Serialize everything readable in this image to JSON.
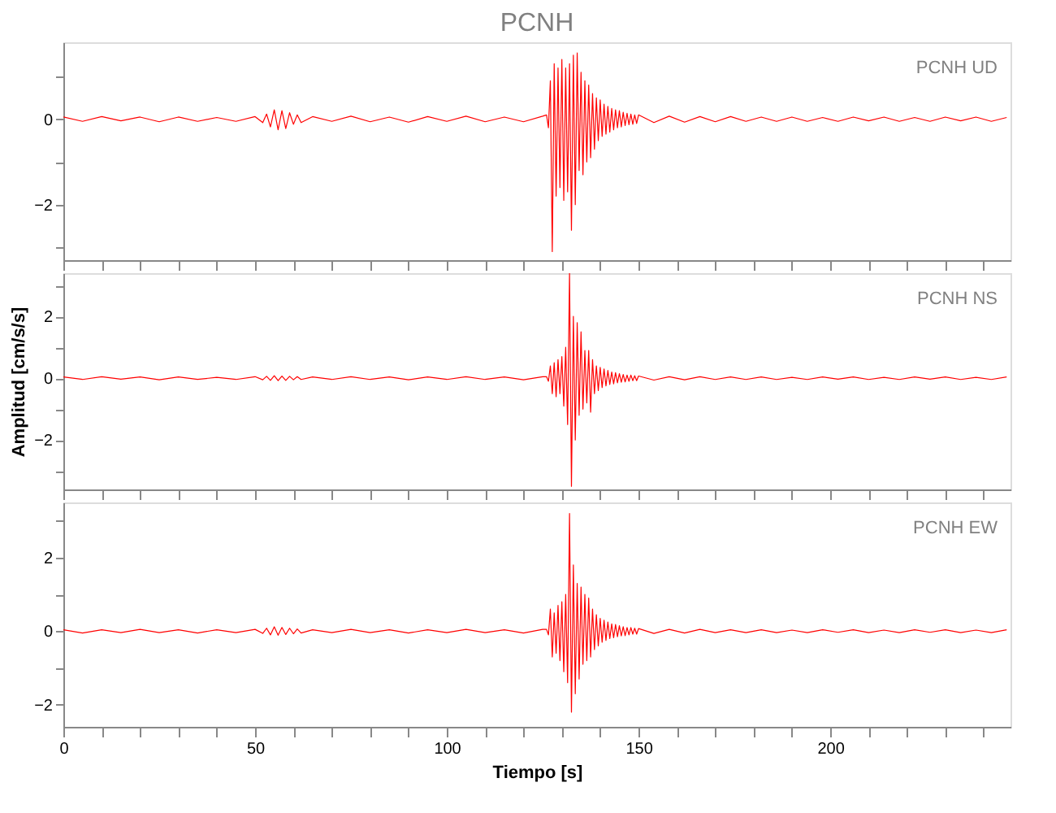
{
  "chart_data": [
    {
      "type": "line",
      "title": "PCNH",
      "annotations": [
        "PCNH  UD"
      ],
      "tick_labels": "y",
      "x": [
        0,
        5,
        10,
        15,
        20,
        25,
        30,
        35,
        40,
        45,
        50,
        52,
        53,
        54,
        55,
        56,
        57,
        58,
        59,
        60,
        61,
        62,
        65,
        70,
        75,
        80,
        85,
        90,
        95,
        100,
        105,
        110,
        115,
        120,
        125,
        126,
        126.5,
        127,
        127.5,
        128,
        128.5,
        129,
        129.5,
        130,
        130.5,
        131,
        131.5,
        132,
        132.5,
        133,
        133.5,
        134,
        134.5,
        135,
        135.5,
        136,
        136.5,
        137,
        137.5,
        138,
        138.5,
        139,
        139.5,
        140,
        140.5,
        141,
        141.5,
        142,
        142.5,
        143,
        143.5,
        144,
        144.5,
        145,
        145.5,
        146,
        146.5,
        147,
        147.5,
        148,
        148.5,
        149,
        149.5,
        150,
        154,
        158,
        162,
        166,
        170,
        174,
        178,
        182,
        186,
        190,
        194,
        198,
        202,
        206,
        210,
        214,
        218,
        222,
        226,
        230,
        234,
        238,
        242,
        246
      ],
      "series": [
        {
          "color": "#ff0000",
          "values": [
            0.05,
            -0.05,
            0.06,
            -0.04,
            0.05,
            -0.06,
            0.05,
            -0.05,
            0.04,
            -0.05,
            0.06,
            -0.08,
            0.12,
            -0.18,
            0.22,
            -0.25,
            0.2,
            -0.22,
            0.15,
            -0.12,
            0.1,
            -0.08,
            0.06,
            -0.05,
            0.07,
            -0.06,
            0.05,
            -0.07,
            0.06,
            -0.05,
            0.07,
            -0.06,
            0.05,
            -0.06,
            0.07,
            0.1,
            -0.2,
            0.9,
            -3.1,
            1.3,
            -1.8,
            1.2,
            -1.6,
            1.4,
            -1.9,
            1.2,
            -1.7,
            1.3,
            -2.6,
            1.5,
            -2.0,
            1.55,
            -1.2,
            1.1,
            -1.3,
            0.9,
            -1.0,
            0.8,
            -0.9,
            0.6,
            -0.7,
            0.5,
            -0.5,
            0.45,
            -0.4,
            0.35,
            -0.35,
            0.3,
            -0.3,
            0.25,
            -0.25,
            0.22,
            -0.2,
            0.2,
            -0.18,
            0.16,
            -0.15,
            0.14,
            -0.13,
            0.12,
            -0.12,
            0.1,
            -0.1,
            0.1,
            -0.08,
            0.07,
            -0.07,
            0.06,
            -0.06,
            0.06,
            -0.05,
            0.05,
            -0.05,
            0.05,
            -0.05,
            0.04,
            -0.05,
            0.05,
            -0.04,
            0.05,
            -0.05,
            0.04,
            -0.05,
            0.05,
            -0.04,
            0.05,
            -0.05,
            0.04
          ]
        }
      ],
      "xlim": [
        0,
        247
      ],
      "xticks": [
        0,
        {
          "value": 10,
          "label": null
        },
        {
          "value": 20,
          "label": null
        },
        {
          "value": 30,
          "label": null
        },
        {
          "value": 40,
          "label": null
        },
        50,
        {
          "value": 60,
          "label": null
        },
        {
          "value": 70,
          "label": null
        },
        {
          "value": 80,
          "label": null
        },
        {
          "value": 90,
          "label": null
        },
        100,
        {
          "value": 110,
          "label": null
        },
        {
          "value": 120,
          "label": null
        },
        {
          "value": 130,
          "label": null
        },
        {
          "value": 140,
          "label": null
        },
        150,
        {
          "value": 160,
          "label": null
        },
        {
          "value": 170,
          "label": null
        },
        {
          "value": 180,
          "label": null
        },
        {
          "value": 190,
          "label": null
        },
        200,
        {
          "value": 210,
          "label": null
        },
        {
          "value": 220,
          "label": null
        },
        {
          "value": 230,
          "label": null
        },
        {
          "value": 240,
          "label": null
        }
      ],
      "ylim": [
        -3.3,
        1.8
      ],
      "yticks": [
        {
          "value": 1,
          "label": null
        },
        0,
        {
          "value": -1,
          "label": null
        },
        -2,
        {
          "value": -3,
          "label": null
        }
      ]
    },
    {
      "type": "line",
      "ylabel": "Amplitud [cm/s/s]",
      "annotations": [
        "PCNH  NS"
      ],
      "tick_labels": "y",
      "x": [
        0,
        5,
        10,
        15,
        20,
        25,
        30,
        35,
        40,
        45,
        50,
        52,
        53,
        54,
        55,
        56,
        57,
        58,
        59,
        60,
        61,
        62,
        65,
        70,
        75,
        80,
        85,
        90,
        95,
        100,
        105,
        110,
        115,
        120,
        125,
        126,
        126.5,
        127,
        127.5,
        128,
        128.5,
        129,
        129.5,
        130,
        130.5,
        131,
        131.5,
        132,
        132.5,
        133,
        133.5,
        134,
        134.5,
        135,
        135.5,
        136,
        136.5,
        137,
        137.5,
        138,
        138.5,
        139,
        139.5,
        140,
        140.5,
        141,
        141.5,
        142,
        142.5,
        143,
        143.5,
        144,
        144.5,
        145,
        145.5,
        146,
        146.5,
        147,
        147.5,
        148,
        148.5,
        149,
        149.5,
        150,
        154,
        158,
        162,
        166,
        170,
        174,
        178,
        182,
        186,
        190,
        194,
        198,
        202,
        206,
        210,
        214,
        218,
        222,
        226,
        230,
        234,
        238,
        242,
        246
      ],
      "series": [
        {
          "color": "#ff0000",
          "values": [
            0.04,
            -0.04,
            0.05,
            -0.03,
            0.04,
            -0.05,
            0.04,
            -0.04,
            0.03,
            -0.04,
            0.05,
            -0.05,
            0.06,
            -0.07,
            0.08,
            -0.08,
            0.07,
            -0.07,
            0.06,
            -0.05,
            0.05,
            -0.04,
            0.04,
            -0.04,
            0.05,
            -0.04,
            0.04,
            -0.05,
            0.04,
            -0.04,
            0.05,
            -0.04,
            0.04,
            -0.05,
            0.05,
            0.05,
            -0.1,
            0.4,
            -0.5,
            0.5,
            -0.6,
            0.6,
            -0.5,
            0.7,
            -0.9,
            1.0,
            -1.5,
            3.4,
            -3.5,
            2.0,
            -2.0,
            1.8,
            -1.2,
            1.5,
            -1.0,
            0.9,
            -0.8,
            0.9,
            -1.1,
            0.6,
            -0.5,
            0.4,
            -0.4,
            0.35,
            -0.3,
            0.3,
            -0.25,
            0.25,
            -0.2,
            0.2,
            -0.18,
            0.18,
            -0.15,
            0.15,
            -0.13,
            0.12,
            -0.12,
            0.1,
            -0.1,
            0.1,
            -0.08,
            0.08,
            -0.08,
            0.07,
            -0.06,
            0.05,
            -0.05,
            0.05,
            -0.04,
            0.04,
            -0.04,
            0.04,
            -0.04,
            0.03,
            -0.04,
            0.04,
            -0.03,
            0.04,
            -0.04,
            0.03,
            -0.04,
            0.04,
            -0.03,
            0.04,
            -0.04,
            0.03,
            -0.04,
            0.04
          ]
        }
      ],
      "xlim": [
        0,
        247
      ],
      "xticks": [
        0,
        {
          "value": 10,
          "label": null
        },
        {
          "value": 20,
          "label": null
        },
        {
          "value": 30,
          "label": null
        },
        {
          "value": 40,
          "label": null
        },
        50,
        {
          "value": 60,
          "label": null
        },
        {
          "value": 70,
          "label": null
        },
        {
          "value": 80,
          "label": null
        },
        {
          "value": 90,
          "label": null
        },
        100,
        {
          "value": 110,
          "label": null
        },
        {
          "value": 120,
          "label": null
        },
        {
          "value": 130,
          "label": null
        },
        {
          "value": 140,
          "label": null
        },
        150,
        {
          "value": 160,
          "label": null
        },
        {
          "value": 170,
          "label": null
        },
        {
          "value": 180,
          "label": null
        },
        {
          "value": 190,
          "label": null
        },
        200,
        {
          "value": 210,
          "label": null
        },
        {
          "value": 220,
          "label": null
        },
        {
          "value": 230,
          "label": null
        },
        {
          "value": 240,
          "label": null
        }
      ],
      "ylim": [
        -3.6,
        3.4
      ],
      "yticks": [
        {
          "value": 3,
          "label": null
        },
        2,
        {
          "value": 1,
          "label": null
        },
        0,
        {
          "value": -1,
          "label": null
        },
        -2,
        {
          "value": -3,
          "label": null
        }
      ]
    },
    {
      "type": "line",
      "xlabel": "Tiempo [s]",
      "annotations": [
        "PCNH  EW"
      ],
      "x": [
        0,
        5,
        10,
        15,
        20,
        25,
        30,
        35,
        40,
        45,
        50,
        52,
        53,
        54,
        55,
        56,
        57,
        58,
        59,
        60,
        61,
        62,
        65,
        70,
        75,
        80,
        85,
        90,
        95,
        100,
        105,
        110,
        115,
        120,
        125,
        126,
        126.5,
        127,
        127.5,
        128,
        128.5,
        129,
        129.5,
        130,
        130.5,
        131,
        131.5,
        132,
        132.5,
        133,
        133.5,
        134,
        134.5,
        135,
        135.5,
        136,
        136.5,
        137,
        137.5,
        138,
        138.5,
        139,
        139.5,
        140,
        140.5,
        141,
        141.5,
        142,
        142.5,
        143,
        143.5,
        144,
        144.5,
        145,
        145.5,
        146,
        146.5,
        147,
        147.5,
        148,
        148.5,
        149,
        149.5,
        150,
        154,
        158,
        162,
        166,
        170,
        174,
        178,
        182,
        186,
        190,
        194,
        198,
        202,
        206,
        210,
        214,
        218,
        222,
        226,
        230,
        234,
        238,
        242,
        246
      ],
      "series": [
        {
          "color": "#ff0000",
          "values": [
            0.04,
            -0.05,
            0.04,
            -0.04,
            0.05,
            -0.04,
            0.04,
            -0.05,
            0.04,
            -0.04,
            0.05,
            -0.06,
            0.08,
            -0.1,
            0.12,
            -0.11,
            0.1,
            -0.09,
            0.08,
            -0.07,
            0.06,
            -0.05,
            0.04,
            -0.04,
            0.05,
            -0.04,
            0.04,
            -0.05,
            0.04,
            -0.04,
            0.05,
            -0.04,
            0.04,
            -0.05,
            0.05,
            0.05,
            -0.1,
            0.6,
            -0.7,
            0.5,
            -0.6,
            0.7,
            -0.8,
            0.8,
            -1.1,
            1.0,
            -1.4,
            3.2,
            -2.2,
            1.8,
            -1.7,
            1.3,
            -1.3,
            1.2,
            -0.9,
            1.0,
            -0.8,
            0.9,
            -0.7,
            0.6,
            -0.5,
            0.45,
            -0.4,
            0.35,
            -0.3,
            0.3,
            -0.25,
            0.25,
            -0.2,
            0.2,
            -0.18,
            0.18,
            -0.15,
            0.15,
            -0.13,
            0.12,
            -0.12,
            0.1,
            -0.1,
            0.1,
            -0.08,
            0.08,
            -0.08,
            0.07,
            -0.06,
            0.05,
            -0.05,
            0.05,
            -0.04,
            0.04,
            -0.04,
            0.04,
            -0.04,
            0.03,
            -0.04,
            0.04,
            -0.03,
            0.04,
            -0.04,
            0.03,
            -0.04,
            0.04,
            -0.03,
            0.04,
            -0.04,
            0.03,
            -0.04,
            0.04
          ]
        }
      ],
      "xlim": [
        0,
        247
      ],
      "xticks": [
        0,
        {
          "value": 10,
          "label": null
        },
        {
          "value": 20,
          "label": null
        },
        {
          "value": 30,
          "label": null
        },
        {
          "value": 40,
          "label": null
        },
        50,
        {
          "value": 60,
          "label": null
        },
        {
          "value": 70,
          "label": null
        },
        {
          "value": 80,
          "label": null
        },
        {
          "value": 90,
          "label": null
        },
        100,
        {
          "value": 110,
          "label": null
        },
        {
          "value": 120,
          "label": null
        },
        {
          "value": 130,
          "label": null
        },
        {
          "value": 140,
          "label": null
        },
        150,
        {
          "value": 160,
          "label": null
        },
        {
          "value": 170,
          "label": null
        },
        {
          "value": 180,
          "label": null
        },
        {
          "value": 190,
          "label": null
        },
        200,
        {
          "value": 210,
          "label": null
        },
        {
          "value": 220,
          "label": null
        },
        {
          "value": 230,
          "label": null
        },
        {
          "value": 240,
          "label": null
        }
      ],
      "ylim": [
        -2.6,
        3.5
      ],
      "yticks": [
        {
          "value": 3,
          "label": null
        },
        2,
        {
          "value": 1,
          "label": null
        },
        0,
        {
          "value": -1,
          "label": null
        },
        -2
      ]
    }
  ]
}
